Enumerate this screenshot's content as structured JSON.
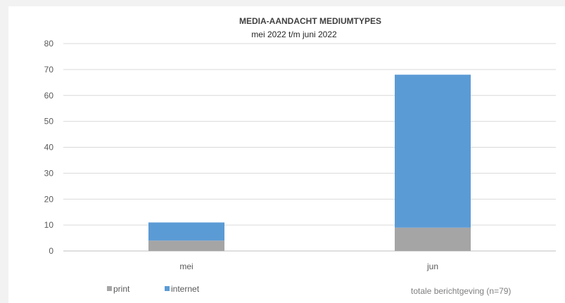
{
  "chart_data": {
    "type": "bar",
    "stacked": true,
    "title": "MEDIA-AANDACHT MEDIUMTYPES",
    "subtitle": "mei 2022 t/m juni 2022",
    "categories": [
      "mei",
      "jun"
    ],
    "series": [
      {
        "name": "print",
        "color": "#a5a5a5",
        "values": [
          4,
          9
        ]
      },
      {
        "name": "internet",
        "color": "#5b9bd5",
        "values": [
          7,
          59
        ]
      }
    ],
    "ylim": [
      0,
      80
    ],
    "yticks": [
      0,
      10,
      20,
      30,
      40,
      50,
      60,
      70,
      80
    ],
    "grid": true,
    "legend_position": "bottom-left",
    "note": "totale berichtgeving (n=79)"
  }
}
